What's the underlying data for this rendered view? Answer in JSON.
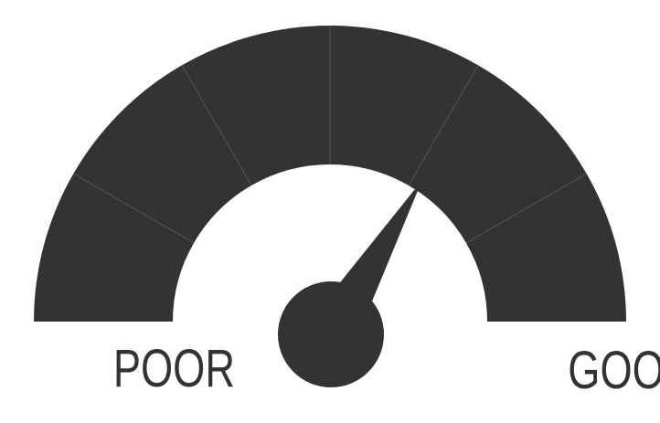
{
  "gauge": {
    "min_label": "POOR",
    "max_label": "GOOD",
    "level": 0.67,
    "segment_count": 6,
    "colors": {
      "arc": "#333333",
      "divider": "#555555",
      "needle": "#333333",
      "background": "#ffffff"
    }
  }
}
